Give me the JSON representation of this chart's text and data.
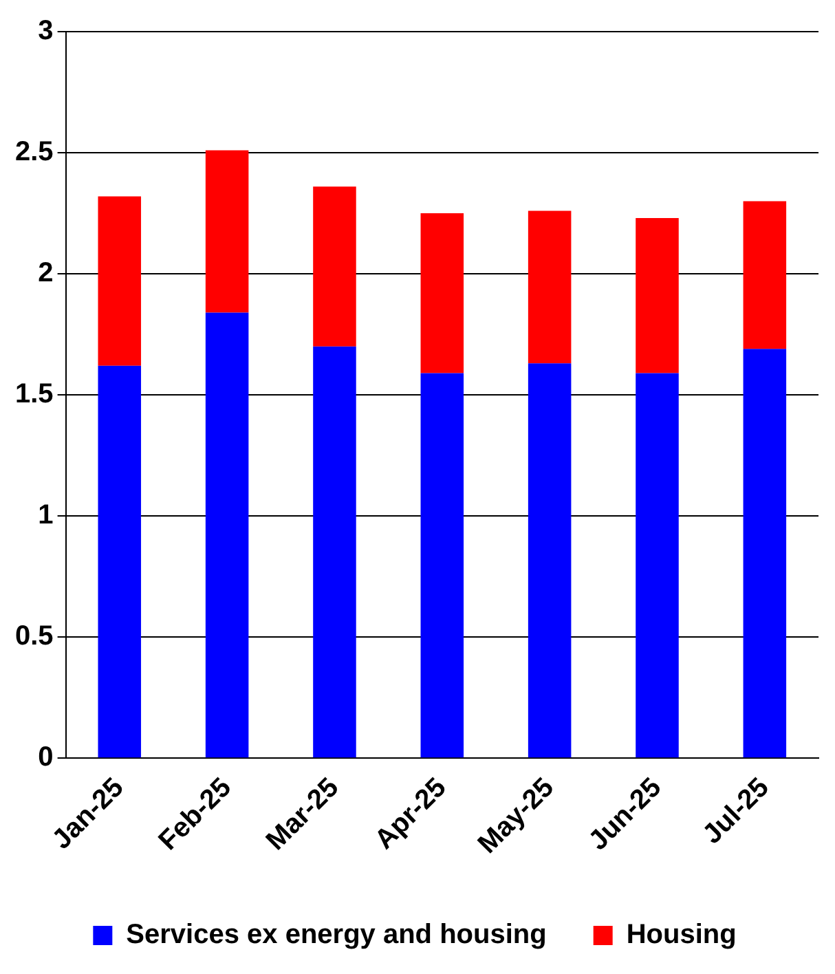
{
  "chart_data": {
    "type": "bar",
    "stacked": true,
    "categories": [
      "Jan-25",
      "Feb-25",
      "Mar-25",
      "Apr-25",
      "May-25",
      "Jun-25",
      "Jul-25"
    ],
    "series": [
      {
        "name": "Services ex energy and housing",
        "color": "#0000ff",
        "values": [
          1.62,
          1.84,
          1.7,
          1.59,
          1.63,
          1.59,
          1.69
        ]
      },
      {
        "name": "Housing",
        "color": "#ff0000",
        "values": [
          0.7,
          0.67,
          0.66,
          0.66,
          0.63,
          0.64,
          0.61
        ]
      }
    ],
    "ylim": [
      0,
      3
    ],
    "yticks": [
      0,
      0.5,
      1,
      1.5,
      2,
      2.5,
      3
    ],
    "grid": "y",
    "legend": "bottom"
  }
}
